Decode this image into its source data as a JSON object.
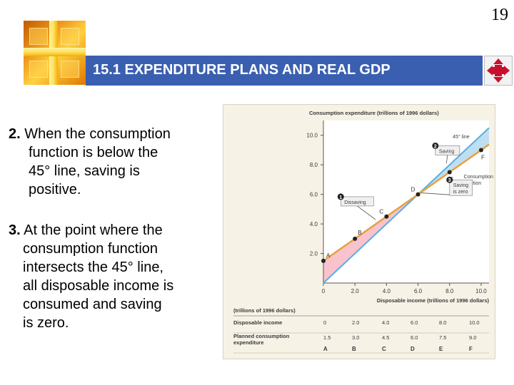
{
  "page_number": "19",
  "header": {
    "title": "15.1 EXPENDITURE PLANS AND REAL GDP",
    "nav_icon": "four-arrows-icon"
  },
  "bullets": [
    {
      "number": "2.",
      "lines": [
        "When the consumption",
        "function is below the",
        "45° line, saving is",
        "positive."
      ]
    },
    {
      "number": "3.",
      "lines": [
        "At the point where the",
        "consumption function",
        "intersects the 45° line,",
        "all disposable income is",
        "consumed and saving",
        "is zero."
      ]
    }
  ],
  "chart_data": {
    "type": "line",
    "y_title": "Consumption expenditure (trillions of 1996 dollars)",
    "x_title": "Disposable income (trillions of 1996 dollars)",
    "x_ticks": [
      "0",
      "2.0",
      "4.0",
      "6.0",
      "8.0",
      "10.0"
    ],
    "y_ticks": [
      "2.0",
      "4.0",
      "6.0",
      "8.0",
      "10.0"
    ],
    "xlim": [
      0,
      10.5
    ],
    "ylim": [
      0,
      11
    ],
    "series": [
      {
        "name": "45° line",
        "x": [
          0,
          10.5
        ],
        "y": [
          0,
          10.5
        ],
        "color": "#5aaee0"
      },
      {
        "name": "Consumption function",
        "x": [
          0,
          10.5
        ],
        "y": [
          1.5,
          9.375
        ],
        "color": "#e8a040"
      }
    ],
    "points": [
      {
        "label": "A",
        "x": 0,
        "y": 1.5
      },
      {
        "label": "B",
        "x": 2.0,
        "y": 3.0
      },
      {
        "label": "C",
        "x": 4.0,
        "y": 4.5
      },
      {
        "label": "D",
        "x": 6.0,
        "y": 6.0
      },
      {
        "label": "E",
        "x": 8.0,
        "y": 7.5
      },
      {
        "label": "F",
        "x": 10.0,
        "y": 9.0
      }
    ],
    "annotations": [
      {
        "num": "1",
        "text": [
          "Dissaving"
        ]
      },
      {
        "num": "2",
        "text": [
          "Saving"
        ]
      },
      {
        "num": "3",
        "text": [
          "Saving",
          "is zero"
        ]
      }
    ],
    "table": {
      "unit": "(trillions of 1996 dollars)",
      "rows": [
        {
          "label": [
            "Disposable income"
          ],
          "values": [
            "0",
            "2.0",
            "4.0",
            "6.0",
            "8.0",
            "10.0"
          ]
        },
        {
          "label": [
            "Planned consumption",
            "expenditure"
          ],
          "values": [
            "1.5",
            "3.0",
            "4.5",
            "6.0",
            "7.5",
            "9.0"
          ]
        }
      ],
      "footer": [
        "A",
        "B",
        "C",
        "D",
        "E",
        "F"
      ]
    }
  }
}
